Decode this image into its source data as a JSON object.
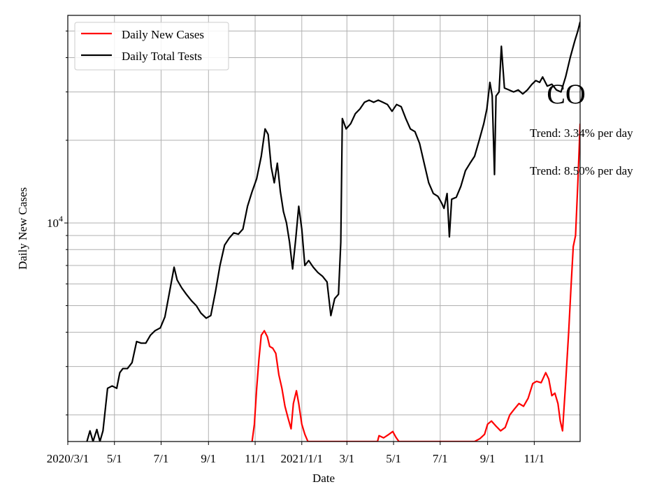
{
  "chart_data": {
    "type": "line",
    "title": "",
    "xlabel": "Date",
    "ylabel": "Daily New Cases",
    "yscale": "log",
    "ylim": [
      1600,
      57000
    ],
    "xlim": [
      "2020-03-01",
      "2021-12-31"
    ],
    "grid": true,
    "legend_position": "upper-left",
    "x_ticks": [
      {
        "date": "2020-03-01",
        "label": "2020/3/1"
      },
      {
        "date": "2020-05-01",
        "label": "5/1"
      },
      {
        "date": "2020-07-01",
        "label": "7/1"
      },
      {
        "date": "2020-09-01",
        "label": "9/1"
      },
      {
        "date": "2020-11-01",
        "label": "11/1"
      },
      {
        "date": "2021-01-01",
        "label": "2021/1/1"
      },
      {
        "date": "2021-03-01",
        "label": "3/1"
      },
      {
        "date": "2021-05-01",
        "label": "5/1"
      },
      {
        "date": "2021-07-01",
        "label": "7/1"
      },
      {
        "date": "2021-09-01",
        "label": "9/1"
      },
      {
        "date": "2021-11-01",
        "label": "11/1"
      }
    ],
    "y_major_ticks": [
      {
        "value": 10000,
        "label_base": "10",
        "label_exp": "4"
      }
    ],
    "y_minor_ticks": [
      2000,
      3000,
      4000,
      5000,
      6000,
      7000,
      8000,
      9000,
      20000,
      30000,
      40000,
      50000
    ],
    "annotations": {
      "state": "CO",
      "trend_tests": "Trend: 3.34% per day",
      "trend_cases": "Trend: 8.50% per day"
    },
    "series": [
      {
        "name": "Daily New Cases",
        "color": "#ff0000",
        "points": [
          [
            "2020-10-28",
            1600
          ],
          [
            "2020-10-31",
            1850
          ],
          [
            "2020-11-03",
            2500
          ],
          [
            "2020-11-06",
            3200
          ],
          [
            "2020-11-09",
            3900
          ],
          [
            "2020-11-13",
            4050
          ],
          [
            "2020-11-17",
            3850
          ],
          [
            "2020-11-20",
            3550
          ],
          [
            "2020-11-24",
            3500
          ],
          [
            "2020-11-28",
            3350
          ],
          [
            "2020-12-02",
            2800
          ],
          [
            "2020-12-06",
            2500
          ],
          [
            "2020-12-10",
            2150
          ],
          [
            "2020-12-14",
            1950
          ],
          [
            "2020-12-18",
            1780
          ],
          [
            "2020-12-21",
            2200
          ],
          [
            "2020-12-25",
            2450
          ],
          [
            "2020-12-28",
            2200
          ],
          [
            "2021-01-01",
            1850
          ],
          [
            "2021-01-05",
            1700
          ],
          [
            "2021-01-09",
            1600
          ],
          [
            "2021-04-10",
            1600
          ],
          [
            "2021-04-12",
            1680
          ],
          [
            "2021-04-18",
            1650
          ],
          [
            "2021-04-25",
            1700
          ],
          [
            "2021-04-30",
            1740
          ],
          [
            "2021-05-04",
            1660
          ],
          [
            "2021-05-08",
            1600
          ],
          [
            "2021-08-15",
            1600
          ],
          [
            "2021-08-22",
            1640
          ],
          [
            "2021-08-28",
            1700
          ],
          [
            "2021-09-01",
            1850
          ],
          [
            "2021-09-06",
            1900
          ],
          [
            "2021-09-12",
            1820
          ],
          [
            "2021-09-18",
            1750
          ],
          [
            "2021-09-24",
            1800
          ],
          [
            "2021-09-30",
            2000
          ],
          [
            "2021-10-06",
            2100
          ],
          [
            "2021-10-12",
            2200
          ],
          [
            "2021-10-18",
            2150
          ],
          [
            "2021-10-24",
            2300
          ],
          [
            "2021-10-30",
            2600
          ],
          [
            "2021-11-04",
            2650
          ],
          [
            "2021-11-10",
            2620
          ],
          [
            "2021-11-16",
            2850
          ],
          [
            "2021-11-20",
            2700
          ],
          [
            "2021-11-24",
            2350
          ],
          [
            "2021-11-28",
            2400
          ],
          [
            "2021-12-02",
            2200
          ],
          [
            "2021-12-05",
            1900
          ],
          [
            "2021-12-08",
            1750
          ],
          [
            "2021-12-12",
            2600
          ],
          [
            "2021-12-16",
            4000
          ],
          [
            "2021-12-19",
            5800
          ],
          [
            "2021-12-22",
            8200
          ],
          [
            "2021-12-25",
            9000
          ],
          [
            "2021-12-28",
            14000
          ],
          [
            "2021-12-31",
            23000
          ]
        ]
      },
      {
        "name": "Daily Total Tests",
        "color": "#000000",
        "points": [
          [
            "2020-03-26",
            1600
          ],
          [
            "2020-03-30",
            1750
          ],
          [
            "2020-04-03",
            1600
          ],
          [
            "2020-04-08",
            1770
          ],
          [
            "2020-04-12",
            1600
          ],
          [
            "2020-04-16",
            1750
          ],
          [
            "2020-04-22",
            2500
          ],
          [
            "2020-04-28",
            2550
          ],
          [
            "2020-05-04",
            2500
          ],
          [
            "2020-05-08",
            2850
          ],
          [
            "2020-05-12",
            2950
          ],
          [
            "2020-05-18",
            2950
          ],
          [
            "2020-05-24",
            3100
          ],
          [
            "2020-05-30",
            3700
          ],
          [
            "2020-06-05",
            3650
          ],
          [
            "2020-06-11",
            3650
          ],
          [
            "2020-06-17",
            3900
          ],
          [
            "2020-06-23",
            4050
          ],
          [
            "2020-06-30",
            4150
          ],
          [
            "2020-07-06",
            4550
          ],
          [
            "2020-07-12",
            5600
          ],
          [
            "2020-07-18",
            6900
          ],
          [
            "2020-07-22",
            6200
          ],
          [
            "2020-07-28",
            5800
          ],
          [
            "2020-08-03",
            5500
          ],
          [
            "2020-08-10",
            5200
          ],
          [
            "2020-08-16",
            5000
          ],
          [
            "2020-08-22",
            4700
          ],
          [
            "2020-08-29",
            4500
          ],
          [
            "2020-09-04",
            4600
          ],
          [
            "2020-09-10",
            5600
          ],
          [
            "2020-09-16",
            7000
          ],
          [
            "2020-09-22",
            8300
          ],
          [
            "2020-09-28",
            8800
          ],
          [
            "2020-10-04",
            9200
          ],
          [
            "2020-10-10",
            9100
          ],
          [
            "2020-10-16",
            9500
          ],
          [
            "2020-10-22",
            11500
          ],
          [
            "2020-10-28",
            13000
          ],
          [
            "2020-11-03",
            14500
          ],
          [
            "2020-11-09",
            17500
          ],
          [
            "2020-11-14",
            22000
          ],
          [
            "2020-11-18",
            21000
          ],
          [
            "2020-11-22",
            16000
          ],
          [
            "2020-11-26",
            14000
          ],
          [
            "2020-11-30",
            16500
          ],
          [
            "2020-12-04",
            13000
          ],
          [
            "2020-12-08",
            11000
          ],
          [
            "2020-12-12",
            10000
          ],
          [
            "2020-12-16",
            8500
          ],
          [
            "2020-12-20",
            6800
          ],
          [
            "2020-12-24",
            8700
          ],
          [
            "2020-12-28",
            11500
          ],
          [
            "2021-01-01",
            9500
          ],
          [
            "2021-01-05",
            7000
          ],
          [
            "2021-01-10",
            7300
          ],
          [
            "2021-01-16",
            6900
          ],
          [
            "2021-01-22",
            6600
          ],
          [
            "2021-01-28",
            6400
          ],
          [
            "2021-02-03",
            6100
          ],
          [
            "2021-02-08",
            4600
          ],
          [
            "2021-02-13",
            5300
          ],
          [
            "2021-02-18",
            5500
          ],
          [
            "2021-02-21",
            8500
          ],
          [
            "2021-02-23",
            24000
          ],
          [
            "2021-02-28",
            22000
          ],
          [
            "2021-03-06",
            23000
          ],
          [
            "2021-03-12",
            25000
          ],
          [
            "2021-03-18",
            26000
          ],
          [
            "2021-03-24",
            27500
          ],
          [
            "2021-03-30",
            28000
          ],
          [
            "2021-04-05",
            27500
          ],
          [
            "2021-04-11",
            28000
          ],
          [
            "2021-04-17",
            27500
          ],
          [
            "2021-04-23",
            27000
          ],
          [
            "2021-04-29",
            25500
          ],
          [
            "2021-05-05",
            27000
          ],
          [
            "2021-05-11",
            26500
          ],
          [
            "2021-05-17",
            24000
          ],
          [
            "2021-05-23",
            22000
          ],
          [
            "2021-05-29",
            21500
          ],
          [
            "2021-06-04",
            19500
          ],
          [
            "2021-06-10",
            16500
          ],
          [
            "2021-06-16",
            14000
          ],
          [
            "2021-06-22",
            12800
          ],
          [
            "2021-06-28",
            12500
          ],
          [
            "2021-07-03",
            11800
          ],
          [
            "2021-07-06",
            11300
          ],
          [
            "2021-07-10",
            12800
          ],
          [
            "2021-07-13",
            8900
          ],
          [
            "2021-07-16",
            12200
          ],
          [
            "2021-07-22",
            12400
          ],
          [
            "2021-07-28",
            13600
          ],
          [
            "2021-08-03",
            15500
          ],
          [
            "2021-08-09",
            16500
          ],
          [
            "2021-08-15",
            17500
          ],
          [
            "2021-08-21",
            20000
          ],
          [
            "2021-08-27",
            23000
          ],
          [
            "2021-08-31",
            26000
          ],
          [
            "2021-09-04",
            32500
          ],
          [
            "2021-09-07",
            29000
          ],
          [
            "2021-09-10",
            15000
          ],
          [
            "2021-09-12",
            29000
          ],
          [
            "2021-09-16",
            30000
          ],
          [
            "2021-09-19",
            44000
          ],
          [
            "2021-09-23",
            31000
          ],
          [
            "2021-09-29",
            30500
          ],
          [
            "2021-10-05",
            30000
          ],
          [
            "2021-10-11",
            30500
          ],
          [
            "2021-10-17",
            29500
          ],
          [
            "2021-10-23",
            30500
          ],
          [
            "2021-10-29",
            32000
          ],
          [
            "2021-11-03",
            33000
          ],
          [
            "2021-11-08",
            32500
          ],
          [
            "2021-11-12",
            34000
          ],
          [
            "2021-11-18",
            31500
          ],
          [
            "2021-11-24",
            32000
          ],
          [
            "2021-11-30",
            30500
          ],
          [
            "2021-12-06",
            30000
          ],
          [
            "2021-12-12",
            34000
          ],
          [
            "2021-12-18",
            40000
          ],
          [
            "2021-12-24",
            46000
          ],
          [
            "2021-12-28",
            50000
          ],
          [
            "2021-12-31",
            54000
          ]
        ]
      }
    ]
  }
}
